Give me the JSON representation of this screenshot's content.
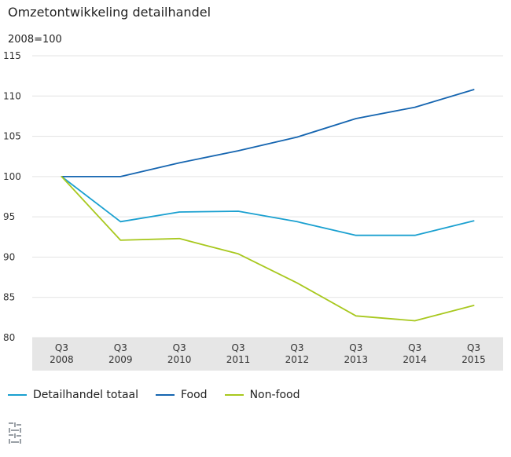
{
  "title": "Omzetontwikkeling detailhandel",
  "unit_label": "2008=100",
  "legend": [
    {
      "label": "Detailhandel totaal",
      "color": "#1aa0d0"
    },
    {
      "label": "Food",
      "color": "#1565b0"
    },
    {
      "label": "Non-food",
      "color": "#a8c81e"
    }
  ],
  "chart_data": {
    "type": "line",
    "title": "Omzetontwikkeling detailhandel",
    "ylabel": "2008=100",
    "xlabel": "",
    "categories": [
      [
        "Q3",
        "2008"
      ],
      [
        "Q3",
        "2009"
      ],
      [
        "Q3",
        "2010"
      ],
      [
        "Q3",
        "2011"
      ],
      [
        "Q3",
        "2012"
      ],
      [
        "Q3",
        "2013"
      ],
      [
        "Q3",
        "2014"
      ],
      [
        "Q3",
        "2015"
      ]
    ],
    "ylim": [
      80,
      115
    ],
    "yticks": [
      80,
      85,
      90,
      95,
      100,
      105,
      110,
      115
    ],
    "grid": true,
    "legend_position": "bottom-left",
    "series": [
      {
        "name": "Detailhandel totaal",
        "color": "#1aa0d0",
        "values": [
          100,
          94.4,
          95.6,
          95.7,
          94.4,
          92.7,
          92.7,
          94.5
        ]
      },
      {
        "name": "Food",
        "color": "#1565b0",
        "values": [
          100,
          100,
          101.7,
          103.2,
          104.9,
          107.2,
          108.6,
          110.8
        ]
      },
      {
        "name": "Non-food",
        "color": "#a8c81e",
        "values": [
          100,
          92.1,
          92.3,
          90.4,
          86.8,
          82.7,
          82.1,
          84.0
        ]
      }
    ]
  }
}
